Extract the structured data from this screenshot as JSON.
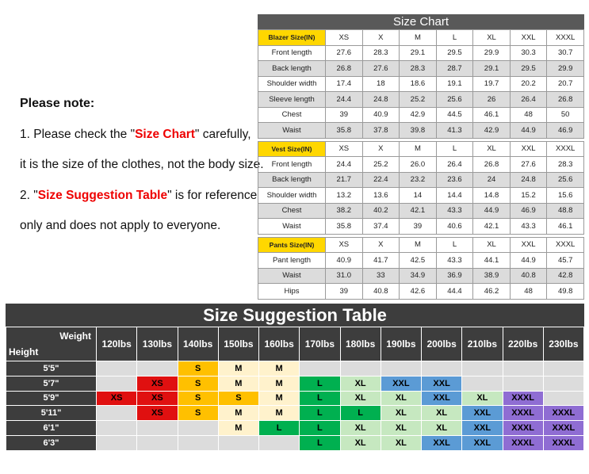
{
  "note": {
    "title": "Please note:",
    "lines": [
      [
        "1. Please check the \"",
        "Size Chart",
        "\" carefully,"
      ],
      [
        "it is the size of the clothes, not the body size."
      ],
      [
        "2. \"",
        "Size Suggestion Table",
        "\" is for reference"
      ],
      [
        "only and does not apply to everyone."
      ]
    ]
  },
  "size_chart": {
    "title": "Size Chart",
    "sections": [
      {
        "header": [
          "Blazer Size(IN)",
          "XS",
          "X",
          "M",
          "L",
          "XL",
          "XXL",
          "XXXL"
        ],
        "rows": [
          [
            "Front length",
            "27.6",
            "28.3",
            "29.1",
            "29.5",
            "29.9",
            "30.3",
            "30.7"
          ],
          [
            "Back length",
            "26.8",
            "27.6",
            "28.3",
            "28.7",
            "29.1",
            "29.5",
            "29.9"
          ],
          [
            "Shoulder width",
            "17.4",
            "18",
            "18.6",
            "19.1",
            "19.7",
            "20.2",
            "20.7"
          ],
          [
            "Sleeve length",
            "24.4",
            "24.8",
            "25.2",
            "25.6",
            "26",
            "26.4",
            "26.8"
          ],
          [
            "Chest",
            "39",
            "40.9",
            "42.9",
            "44.5",
            "46.1",
            "48",
            "50"
          ],
          [
            "Waist",
            "35.8",
            "37.8",
            "39.8",
            "41.3",
            "42.9",
            "44.9",
            "46.9"
          ]
        ]
      },
      {
        "header": [
          "Vest Size(IN)",
          "XS",
          "X",
          "M",
          "L",
          "XL",
          "XXL",
          "XXXL"
        ],
        "rows": [
          [
            "Front length",
            "24.4",
            "25.2",
            "26.0",
            "26.4",
            "26.8",
            "27.6",
            "28.3"
          ],
          [
            "Back length",
            "21.7",
            "22.4",
            "23.2",
            "23.6",
            "24",
            "24.8",
            "25.6"
          ],
          [
            "Shoulder width",
            "13.2",
            "13.6",
            "14",
            "14.4",
            "14.8",
            "15.2",
            "15.6"
          ],
          [
            "Chest",
            "38.2",
            "40.2",
            "42.1",
            "43.3",
            "44.9",
            "46.9",
            "48.8"
          ],
          [
            "Waist",
            "35.8",
            "37.4",
            "39",
            "40.6",
            "42.1",
            "43.3",
            "46.1"
          ]
        ]
      },
      {
        "header": [
          "Pants Size(IN)",
          "XS",
          "X",
          "M",
          "L",
          "XL",
          "XXL",
          "XXXL"
        ],
        "rows": [
          [
            "Pant length",
            "40.9",
            "41.7",
            "42.5",
            "43.3",
            "44.1",
            "44.9",
            "45.7"
          ],
          [
            "Waist",
            "31.0",
            "33",
            "34.9",
            "36.9",
            "38.9",
            "40.8",
            "42.8"
          ],
          [
            "Hips",
            "39",
            "40.8",
            "42.6",
            "44.4",
            "46.2",
            "48",
            "49.8"
          ]
        ]
      }
    ]
  },
  "suggestion": {
    "title": "Size Suggestion Table",
    "weight_label": "Weight",
    "height_label": "Height",
    "weights": [
      "120lbs",
      "130lbs",
      "140lbs",
      "150lbs",
      "160lbs",
      "170lbs",
      "180lbs",
      "190lbs",
      "200lbs",
      "210lbs",
      "220lbs",
      "230lbs"
    ],
    "rows": [
      {
        "height": "5'5\"",
        "cells": [
          null,
          null,
          "S",
          "M",
          "M",
          null,
          null,
          null,
          null,
          null,
          null,
          null
        ]
      },
      {
        "height": "5'7\"",
        "cells": [
          null,
          "XS",
          "S",
          "M",
          "M",
          "L",
          "XL",
          "XXL",
          "XXL",
          null,
          null,
          null
        ]
      },
      {
        "height": "5'9\"",
        "cells": [
          "XS",
          "XS",
          "S",
          "S",
          "M",
          "L",
          "XL",
          "XL",
          "XXL",
          "XL",
          "XXXL",
          null
        ]
      },
      {
        "height": "5'11\"",
        "cells": [
          null,
          "XS",
          "S",
          "M",
          "M",
          "L",
          "L",
          "XL",
          "XL",
          "XXL",
          "XXXL",
          "XXXL"
        ]
      },
      {
        "height": "6'1\"",
        "cells": [
          null,
          null,
          null,
          "M",
          "L",
          "L",
          "XL",
          "XL",
          "XL",
          "XXL",
          "XXXL",
          "XXXL"
        ]
      },
      {
        "height": "6'3\"",
        "cells": [
          null,
          null,
          null,
          null,
          null,
          "L",
          "XL",
          "XL",
          "XXL",
          "XXL",
          "XXXL",
          "XXXL"
        ]
      }
    ],
    "colors": {
      "XS": "#e01010",
      "S": "#ffc000",
      "M": "#fff2cc",
      "L": "#00b050",
      "XL": "#c6e8c0",
      "XXL": "#5b9bd5",
      "XXXL": "#8f6dd3"
    }
  }
}
